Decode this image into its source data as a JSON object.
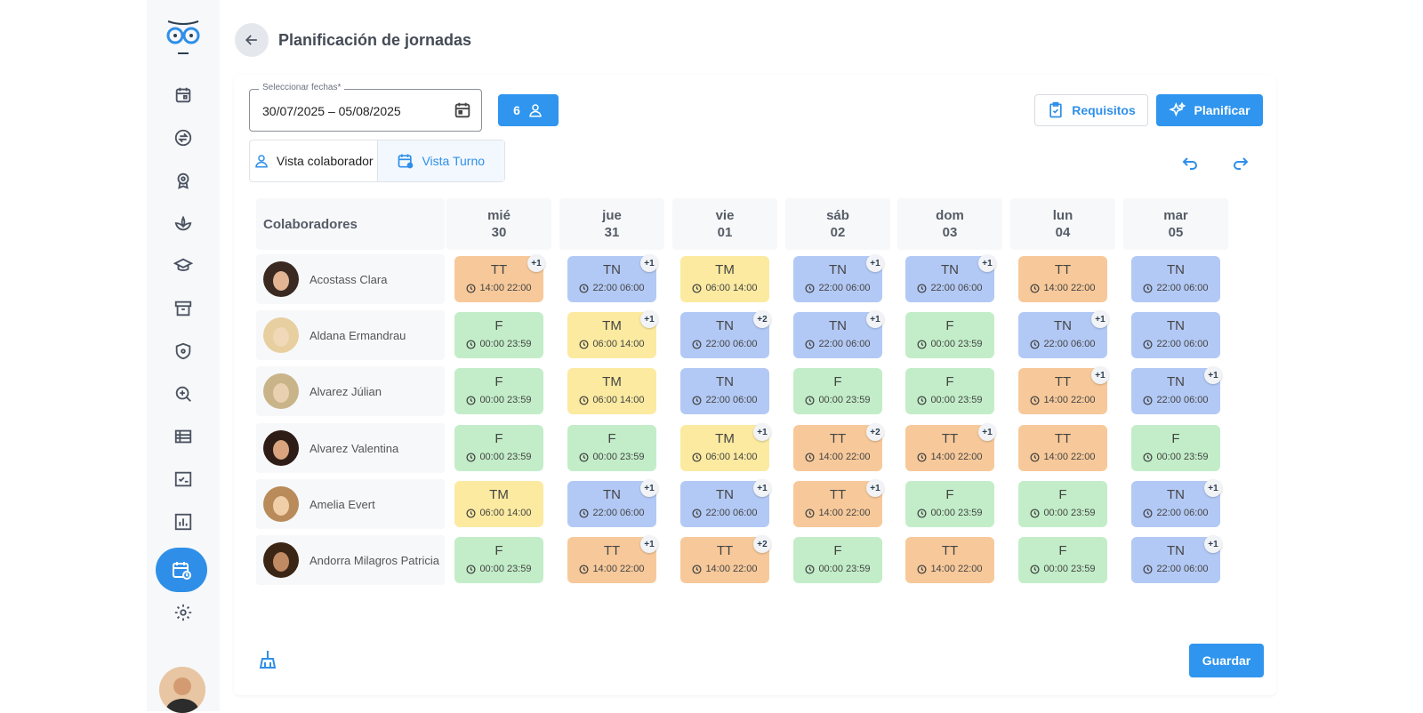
{
  "header": {
    "title": "Planificación de jornadas"
  },
  "filters": {
    "date_label": "Seleccionar fechas*",
    "date_value": "30/07/2025 – 05/08/2025",
    "collaborator_count": "6"
  },
  "actions": {
    "requirements_label": "Requisitos",
    "plan_label": "Planificar",
    "save_label": "Guardar"
  },
  "views": {
    "collaborator_label": "Vista colaborador",
    "shift_label": "Vista Turno"
  },
  "grid": {
    "collaborators_header": "Colaboradores",
    "days": [
      {
        "name": "mié",
        "num": "30"
      },
      {
        "name": "jue",
        "num": "31"
      },
      {
        "name": "vie",
        "num": "01"
      },
      {
        "name": "sáb",
        "num": "02"
      },
      {
        "name": "dom",
        "num": "03"
      },
      {
        "name": "lun",
        "num": "04"
      },
      {
        "name": "mar",
        "num": "05"
      }
    ],
    "rows": [
      {
        "name": "Acostass Clara",
        "shifts": [
          {
            "code": "TT",
            "time": "14:00 22:00",
            "badge": "+1"
          },
          {
            "code": "TN",
            "time": "22:00 06:00",
            "badge": "+1"
          },
          {
            "code": "TM",
            "time": "06:00 14:00",
            "badge": ""
          },
          {
            "code": "TN",
            "time": "22:00 06:00",
            "badge": "+1"
          },
          {
            "code": "TN",
            "time": "22:00 06:00",
            "badge": "+1"
          },
          {
            "code": "TT",
            "time": "14:00 22:00",
            "badge": ""
          },
          {
            "code": "TN",
            "time": "22:00 06:00",
            "badge": ""
          }
        ]
      },
      {
        "name": "Aldana Ermandrau",
        "shifts": [
          {
            "code": "F",
            "time": "00:00 23:59",
            "badge": ""
          },
          {
            "code": "TM",
            "time": "06:00 14:00",
            "badge": "+1"
          },
          {
            "code": "TN",
            "time": "22:00 06:00",
            "badge": "+2"
          },
          {
            "code": "TN",
            "time": "22:00 06:00",
            "badge": "+1"
          },
          {
            "code": "F",
            "time": "00:00 23:59",
            "badge": ""
          },
          {
            "code": "TN",
            "time": "22:00 06:00",
            "badge": "+1"
          },
          {
            "code": "TN",
            "time": "22:00 06:00",
            "badge": ""
          }
        ]
      },
      {
        "name": "Alvarez Júlian",
        "shifts": [
          {
            "code": "F",
            "time": "00:00 23:59",
            "badge": ""
          },
          {
            "code": "TM",
            "time": "06:00 14:00",
            "badge": ""
          },
          {
            "code": "TN",
            "time": "22:00 06:00",
            "badge": ""
          },
          {
            "code": "F",
            "time": "00:00 23:59",
            "badge": ""
          },
          {
            "code": "F",
            "time": "00:00 23:59",
            "badge": ""
          },
          {
            "code": "TT",
            "time": "14:00 22:00",
            "badge": "+1"
          },
          {
            "code": "TN",
            "time": "22:00 06:00",
            "badge": "+1"
          }
        ]
      },
      {
        "name": "Alvarez Valentina",
        "shifts": [
          {
            "code": "F",
            "time": "00:00 23:59",
            "badge": ""
          },
          {
            "code": "F",
            "time": "00:00 23:59",
            "badge": ""
          },
          {
            "code": "TM",
            "time": "06:00 14:00",
            "badge": "+1"
          },
          {
            "code": "TT",
            "time": "14:00 22:00",
            "badge": "+2"
          },
          {
            "code": "TT",
            "time": "14:00 22:00",
            "badge": "+1"
          },
          {
            "code": "TT",
            "time": "14:00 22:00",
            "badge": ""
          },
          {
            "code": "F",
            "time": "00:00 23:59",
            "badge": ""
          }
        ]
      },
      {
        "name": "Amelia Evert",
        "shifts": [
          {
            "code": "TM",
            "time": "06:00 14:00",
            "badge": ""
          },
          {
            "code": "TN",
            "time": "22:00 06:00",
            "badge": "+1"
          },
          {
            "code": "TN",
            "time": "22:00 06:00",
            "badge": "+1"
          },
          {
            "code": "TT",
            "time": "14:00 22:00",
            "badge": "+1"
          },
          {
            "code": "F",
            "time": "00:00 23:59",
            "badge": ""
          },
          {
            "code": "F",
            "time": "00:00 23:59",
            "badge": ""
          },
          {
            "code": "TN",
            "time": "22:00 06:00",
            "badge": "+1"
          }
        ]
      },
      {
        "name": "Andorra Milagros Patricia",
        "shifts": [
          {
            "code": "F",
            "time": "00:00 23:59",
            "badge": ""
          },
          {
            "code": "TT",
            "time": "14:00 22:00",
            "badge": "+1"
          },
          {
            "code": "TT",
            "time": "14:00 22:00",
            "badge": "+2"
          },
          {
            "code": "F",
            "time": "00:00 23:59",
            "badge": ""
          },
          {
            "code": "TT",
            "time": "14:00 22:00",
            "badge": ""
          },
          {
            "code": "F",
            "time": "00:00 23:59",
            "badge": ""
          },
          {
            "code": "TN",
            "time": "22:00 06:00",
            "badge": "+1"
          }
        ]
      }
    ]
  },
  "colors": {
    "TT": "#f7c99a",
    "TN": "#b3c9f5",
    "TM": "#fbeaa0",
    "F": "#c2edc8",
    "accent": "#2f95ee"
  }
}
